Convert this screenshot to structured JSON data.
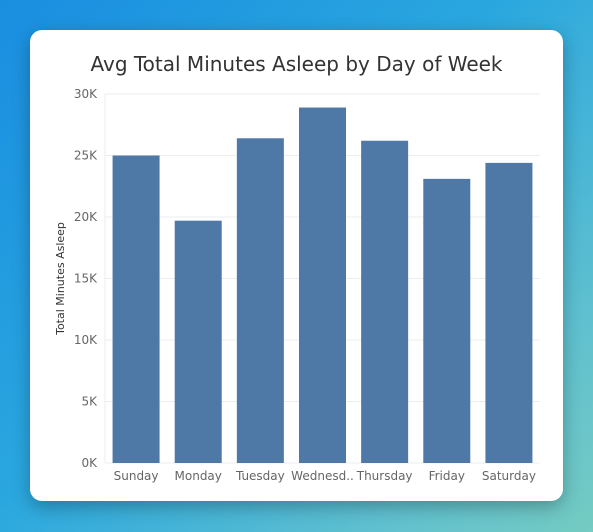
{
  "chart_data": {
    "type": "bar",
    "title": "Avg Total Minutes Asleep by Day of Week",
    "xlabel": "",
    "ylabel": "Total Minutes Asleep",
    "categories": [
      "Sunday",
      "Monday",
      "Tuesday",
      "Wednesd..",
      "Thursday",
      "Friday",
      "Saturday"
    ],
    "values": [
      25000,
      19700,
      26400,
      28900,
      26200,
      23100,
      24400
    ],
    "ylim": [
      0,
      30000
    ],
    "yticks": [
      0,
      5000,
      10000,
      15000,
      20000,
      25000,
      30000
    ],
    "ytick_labels": [
      "0K",
      "5K",
      "10K",
      "15K",
      "20K",
      "25K",
      "30K"
    ],
    "grid": true,
    "colors": {
      "bar": "#4e79a7",
      "grid": "#ededed"
    }
  }
}
